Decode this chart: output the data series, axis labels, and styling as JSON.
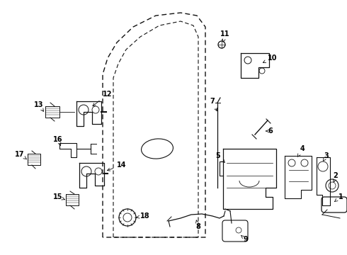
{
  "background_color": "#ffffff",
  "line_color": "#111111",
  "text_color": "#000000",
  "fig_width": 4.9,
  "fig_height": 3.6,
  "dpi": 100,
  "fontsize": 7.0
}
